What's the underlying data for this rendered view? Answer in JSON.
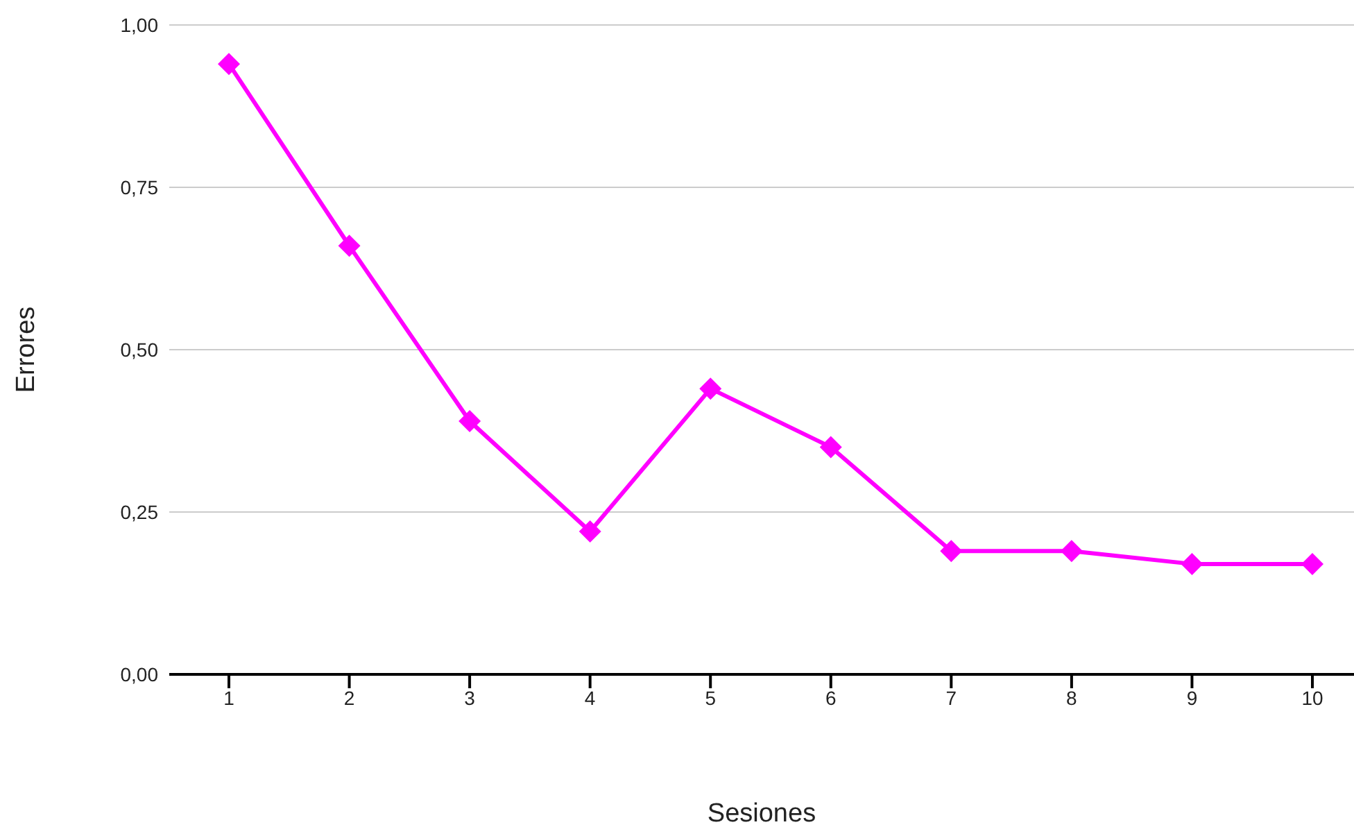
{
  "chart_data": {
    "type": "line",
    "xlabel": "Sesiones",
    "ylabel": "Errores",
    "categories": [
      "1",
      "2",
      "3",
      "4",
      "5",
      "6",
      "7",
      "8",
      "9",
      "10"
    ],
    "series": [
      {
        "color": "#ff00ff",
        "values": [
          0.94,
          0.66,
          0.39,
          0.22,
          0.44,
          0.35,
          0.19,
          0.19,
          0.17,
          0.17
        ]
      }
    ],
    "ylim": [
      0,
      1
    ],
    "yticks": [
      {
        "value": 0,
        "label": "0,00"
      },
      {
        "value": 0.25,
        "label": "0,25"
      },
      {
        "value": 0.5,
        "label": "0,50"
      },
      {
        "value": 0.75,
        "label": "0,75"
      },
      {
        "value": 1,
        "label": "1,00"
      }
    ],
    "grid": "y",
    "marker": "diamond",
    "line_style": "solid",
    "legend": false
  }
}
